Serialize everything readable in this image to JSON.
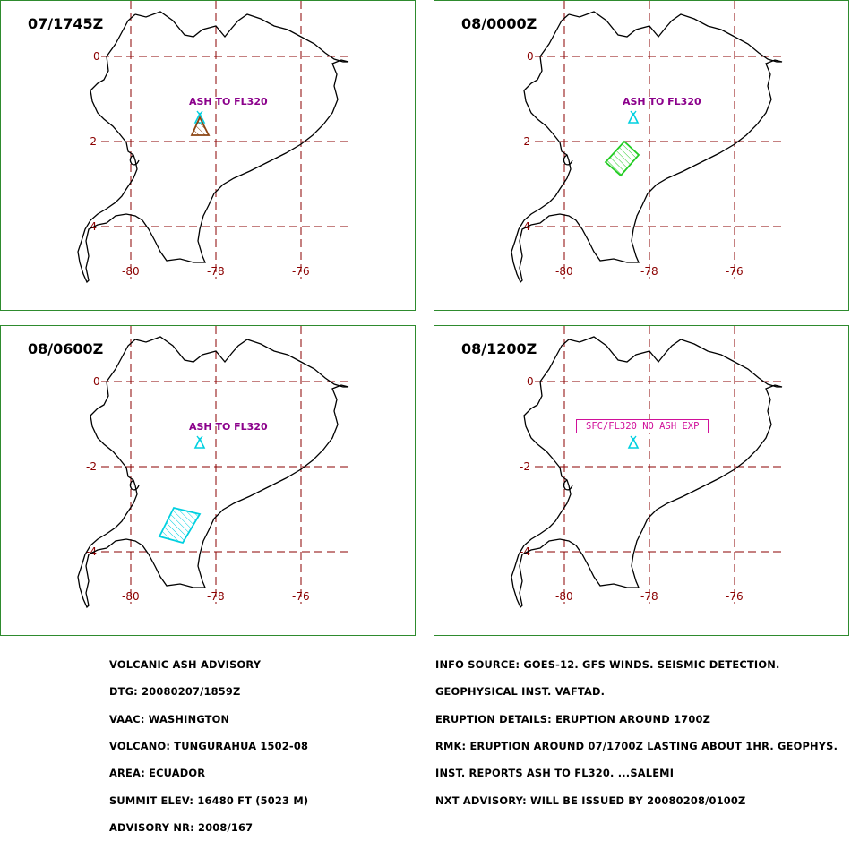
{
  "panels": [
    {
      "time": "07/1745Z",
      "label": "ASH TO FL320",
      "cloud_color": "#8b4513"
    },
    {
      "time": "08/0000Z",
      "label": "ASH TO FL320",
      "cloud_color": "#22cc22"
    },
    {
      "time": "08/0600Z",
      "label": "ASH TO FL320",
      "cloud_color": "#00d0e0"
    },
    {
      "time": "08/1200Z",
      "label": "SFC/FL320 NO ASH EXP",
      "cloud_color": ""
    }
  ],
  "map": {
    "lon_ticks": [
      "-80",
      "-78",
      "-76"
    ],
    "lat_ticks": [
      "0",
      "-2",
      "-4"
    ],
    "grid_color": "#8b0000",
    "volcano_icon": "volcano-triangle-icon",
    "volcano_color": "#00d0e0",
    "label_color": "#8b008b"
  },
  "advisory_left": [
    "VOLCANIC ASH ADVISORY",
    "DTG: 20080207/1859Z",
    "VAAC: WASHINGTON",
    "VOLCANO: TUNGURAHUA 1502-08",
    "AREA: ECUADOR",
    "SUMMIT ELEV: 16480 FT (5023 M)",
    "ADVISORY NR: 2008/167"
  ],
  "advisory_right": [
    "INFO SOURCE: GOES-12. GFS WINDS. SEISMIC DETECTION.",
    "GEOPHYSICAL INST. VAFTAD.",
    "ERUPTION DETAILS: ERUPTION AROUND 1700Z",
    "RMK: ERUPTION AROUND 07/1700Z LASTING ABOUT 1HR. GEOPHYS.",
    "INST. REPORTS ASH TO FL320. ...SALEMI",
    "NXT ADVISORY: WILL BE ISSUED BY 20080208/0100Z"
  ]
}
